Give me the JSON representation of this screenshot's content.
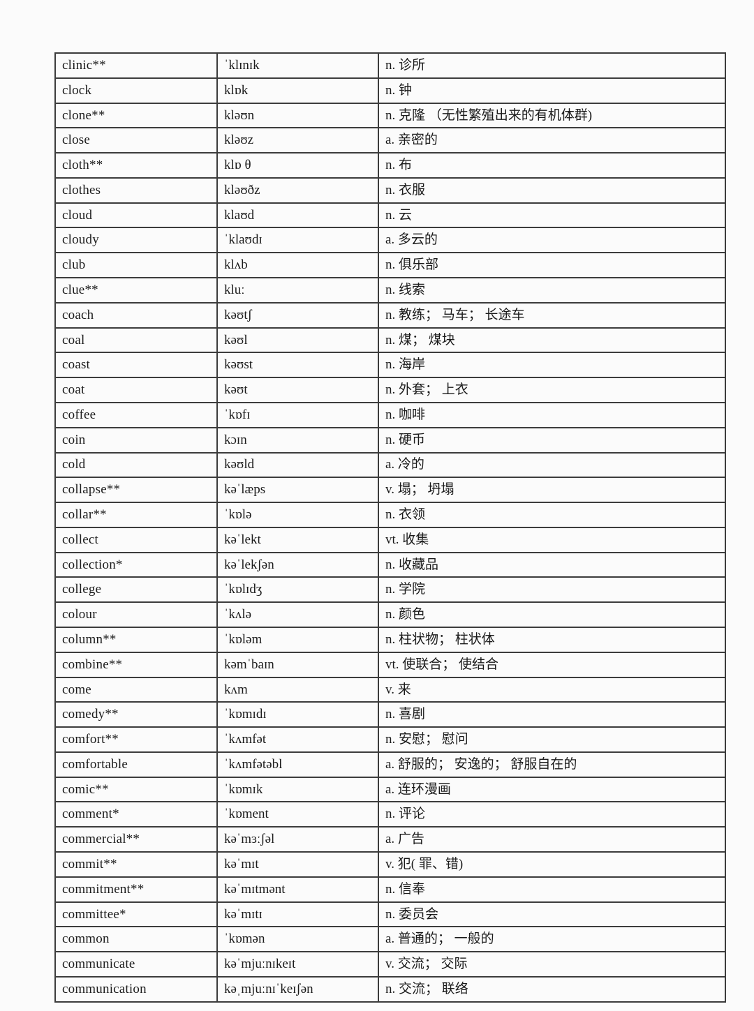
{
  "table": {
    "columns": [
      "word",
      "pronunciation",
      "meaning"
    ],
    "rows": [
      {
        "word": "clinic**",
        "pron": "ˈklɪnɪk",
        "meaning": "n. 诊所"
      },
      {
        "word": "clock",
        "pron": "klɒk",
        "meaning": "n. 钟"
      },
      {
        "word": "clone**",
        "pron": "kləʊn",
        "meaning": "n. 克隆 （无性繁殖出来的有机体群)"
      },
      {
        "word": "close",
        "pron": "kləʊz",
        "meaning": "a. 亲密的"
      },
      {
        "word": "cloth**",
        "pron": "klɒ θ",
        "meaning": "n. 布"
      },
      {
        "word": "clothes",
        "pron": "kləʊðz",
        "meaning": "n. 衣服"
      },
      {
        "word": "cloud",
        "pron": "klaʊd",
        "meaning": "n. 云"
      },
      {
        "word": "cloudy",
        "pron": "ˈklaʊdɪ",
        "meaning": "a. 多云的"
      },
      {
        "word": "club",
        "pron": "klʌb",
        "meaning": "n. 俱乐部"
      },
      {
        "word": "clue**",
        "pron": "kluː",
        "meaning": "n. 线索"
      },
      {
        "word": "coach",
        "pron": "kəʊtʃ",
        "meaning": "n. 教练； 马车； 长途车"
      },
      {
        "word": "coal",
        "pron": "kəʊl",
        "meaning": "n. 煤； 煤块"
      },
      {
        "word": "coast",
        "pron": "kəʊst",
        "meaning": "n. 海岸"
      },
      {
        "word": "coat",
        "pron": "kəʊt",
        "meaning": "n. 外套； 上衣"
      },
      {
        "word": "coffee",
        "pron": "ˈkɒfɪ",
        "meaning": "n. 咖啡"
      },
      {
        "word": "coin",
        "pron": "kɔɪn",
        "meaning": "n. 硬币"
      },
      {
        "word": "cold",
        "pron": "kəʊld",
        "meaning": "a. 冷的"
      },
      {
        "word": "collapse**",
        "pron": "kəˈlæps",
        "meaning": "v. 塌； 坍塌"
      },
      {
        "word": "collar**",
        "pron": "ˈkɒlə",
        "meaning": "n. 衣领"
      },
      {
        "word": "collect",
        "pron": "kəˈlekt",
        "meaning": "vt. 收集"
      },
      {
        "word": "collection*",
        "pron": "kəˈlekʃən",
        "meaning": "n. 收藏品"
      },
      {
        "word": "college",
        "pron": "ˈkɒlɪdʒ",
        "meaning": "n. 学院"
      },
      {
        "word": "colour",
        "pron": "ˈkʌlə",
        "meaning": "n. 颜色"
      },
      {
        "word": "column**",
        "pron": "ˈkɒləm",
        "meaning": "n. 柱状物； 柱状体"
      },
      {
        "word": "combine**",
        "pron": "kəmˈbaɪn",
        "meaning": "vt. 使联合； 使结合"
      },
      {
        "word": "come",
        "pron": "kʌm",
        "meaning": "v. 来"
      },
      {
        "word": "comedy**",
        "pron": "ˈkɒmɪdɪ",
        "meaning": "n. 喜剧"
      },
      {
        "word": "comfort**",
        "pron": "ˈkʌmfət",
        "meaning": "n. 安慰； 慰问"
      },
      {
        "word": "comfortable",
        "pron": "ˈkʌmfətəbl",
        "meaning": "a. 舒服的； 安逸的； 舒服自在的"
      },
      {
        "word": "comic**",
        "pron": "ˈkɒmɪk",
        "meaning": "a. 连环漫画"
      },
      {
        "word": "comment*",
        "pron": "ˈkɒment",
        "meaning": "n. 评论"
      },
      {
        "word": "commercial**",
        "pron": "kəˈmɜːʃəl",
        "meaning": "a. 广告"
      },
      {
        "word": "commit**",
        "pron": "kəˈmɪt",
        "meaning": "v. 犯( 罪、错)"
      },
      {
        "word": "commitment**",
        "pron": "kəˈmɪtmənt",
        "meaning": "n. 信奉"
      },
      {
        "word": "committee*",
        "pron": "kəˈmɪtɪ",
        "meaning": "n. 委员会"
      },
      {
        "word": "common",
        "pron": "ˈkɒmən",
        "meaning": "a. 普通的； 一般的"
      },
      {
        "word": "communicate",
        "pron": "kəˈmjuːnɪkeɪt",
        "meaning": "v. 交流； 交际"
      },
      {
        "word": "communication",
        "pron": "kəˌmjuːnɪˈkeɪʃən",
        "meaning": "n. 交流； 联络"
      }
    ]
  }
}
